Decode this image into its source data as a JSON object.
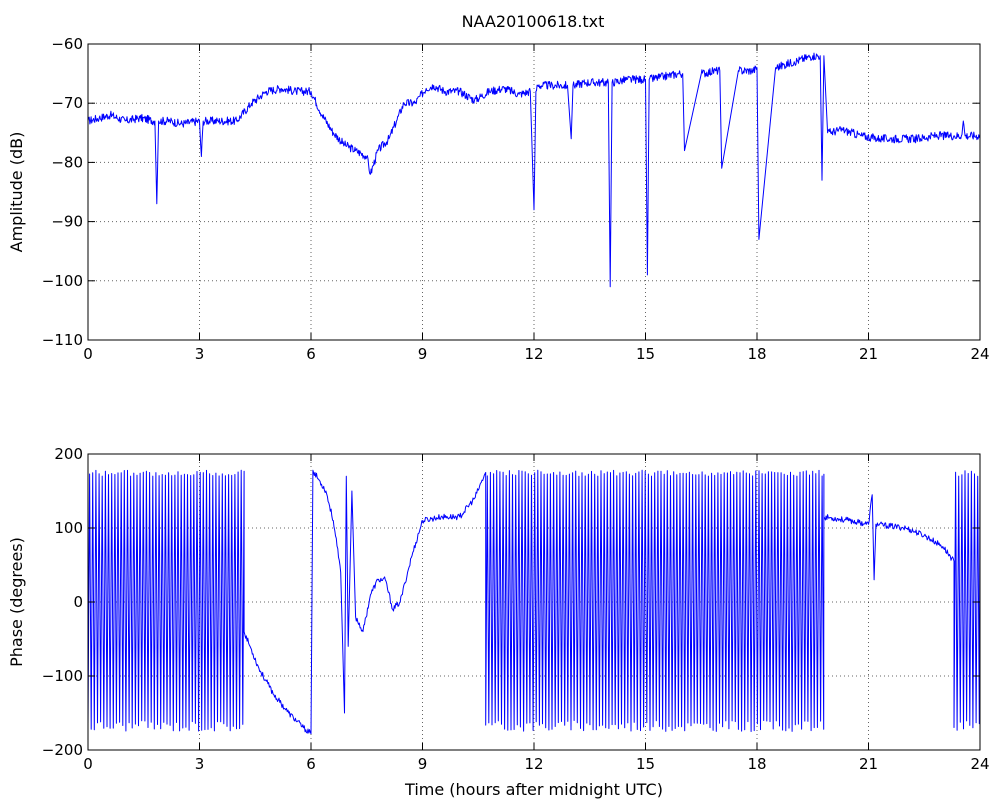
{
  "figure": {
    "title": "NAA20100618.txt",
    "xlabel": "Time (hours after midnight UTC)"
  },
  "chart_data": [
    {
      "type": "line",
      "title": "NAA20100618.txt",
      "xlabel": "",
      "ylabel": "Amplitude (dB)",
      "xlim": [
        0,
        24
      ],
      "ylim": [
        -110,
        -60
      ],
      "xticks": [
        0,
        3,
        6,
        9,
        12,
        15,
        18,
        21,
        24
      ],
      "yticks": [
        -110,
        -100,
        -90,
        -80,
        -70,
        -60
      ],
      "grid": true,
      "color": "#0000ff",
      "series": [
        {
          "x": [
            0,
            0.3,
            0.6,
            1.0,
            1.4,
            1.8,
            1.85,
            1.9,
            2.2,
            2.5,
            3.0,
            3.05,
            3.1,
            3.5,
            4.0,
            4.4,
            4.8,
            5.2,
            5.6,
            6.0,
            6.3,
            6.6,
            6.9,
            7.2,
            7.5,
            7.6,
            7.8,
            8.1,
            8.3,
            8.5,
            8.8,
            9.1,
            9.3,
            9.6,
            10.0,
            10.4,
            10.8,
            11.2,
            11.6,
            11.9,
            12.0,
            12.05,
            12.1,
            12.5,
            12.9,
            13.0,
            13.05,
            13.4,
            13.8,
            14.0,
            14.05,
            14.1,
            14.5,
            14.9,
            15.0,
            15.05,
            15.1,
            15.5,
            15.9,
            16.0,
            16.05,
            16.5,
            16.9,
            17.0,
            17.05,
            17.5,
            17.9,
            18.0,
            18.05,
            18.5,
            19.0,
            19.5,
            19.7,
            19.75,
            19.8,
            19.9,
            20.3,
            20.8,
            21.3,
            21.8,
            22.3,
            22.8,
            23.3,
            23.5,
            23.55,
            23.6,
            24.0
          ],
          "y": [
            -73,
            -72.5,
            -72,
            -73,
            -72.5,
            -73,
            -87,
            -73,
            -73,
            -73.5,
            -73,
            -79,
            -73,
            -73,
            -73,
            -70,
            -68,
            -67.5,
            -68,
            -68,
            -72,
            -75,
            -77,
            -78,
            -79,
            -82,
            -78,
            -76,
            -73,
            -70,
            -70,
            -67.5,
            -67,
            -68,
            -68,
            -69.5,
            -68,
            -67.5,
            -68.5,
            -68,
            -88,
            -68,
            -67,
            -67,
            -67,
            -76,
            -67,
            -66.5,
            -66.5,
            -66.5,
            -101,
            -66.5,
            -66,
            -66,
            -66,
            -99,
            -66,
            -65.5,
            -65,
            -65,
            -78,
            -65,
            -64.5,
            -64.5,
            -81,
            -64.5,
            -64.5,
            -64,
            -93,
            -64,
            -63,
            -62,
            -62,
            -83,
            -62,
            -75,
            -74.5,
            -75.5,
            -76,
            -76,
            -76,
            -75.5,
            -75.5,
            -75.5,
            -73,
            -75.5,
            -75.5
          ]
        }
      ]
    },
    {
      "type": "line",
      "title": "",
      "xlabel": "Time (hours after midnight UTC)",
      "ylabel": "Phase (degrees)",
      "xlim": [
        0,
        24
      ],
      "ylim": [
        -200,
        200
      ],
      "xticks": [
        0,
        3,
        6,
        9,
        12,
        15,
        18,
        21,
        24
      ],
      "yticks": [
        -200,
        -100,
        0,
        100,
        200
      ],
      "grid": true,
      "color": "#0000ff",
      "series": [
        {
          "segments": [
            {
              "kind": "wrap",
              "x": [
                0,
                4.2
              ],
              "low": -175,
              "high": 178,
              "cycle_hours": 0.085
            },
            {
              "kind": "curve",
              "x": [
                4.2,
                4.6,
                5.0,
                5.4,
                5.8,
                6.0
              ],
              "y": [
                -40,
                -90,
                -125,
                -150,
                -170,
                -178
              ]
            },
            {
              "kind": "curve",
              "x": [
                6.0,
                6.05
              ],
              "y": [
                -178,
                178
              ]
            },
            {
              "kind": "curve",
              "x": [
                6.05,
                6.4,
                6.6,
                6.8,
                6.9,
                6.95,
                7.0,
                7.1,
                7.2,
                7.4,
                7.6,
                7.8,
                8.0,
                8.2,
                8.4,
                8.7,
                9.0,
                9.5,
                10.0,
                10.4,
                10.7
              ],
              "y": [
                178,
                150,
                110,
                40,
                -150,
                170,
                -60,
                150,
                -20,
                -40,
                10,
                30,
                30,
                -10,
                0,
                60,
                110,
                115,
                115,
                140,
                175
              ]
            },
            {
              "kind": "wrap",
              "x": [
                10.7,
                19.8
              ],
              "low": -175,
              "high": 178,
              "cycle_hours": 0.085
            },
            {
              "kind": "curve",
              "x": [
                19.8,
                20.5,
                21.0,
                21.1,
                21.15,
                21.2,
                22.0,
                22.5,
                23.0,
                23.3
              ],
              "y": [
                115,
                110,
                105,
                145,
                30,
                105,
                100,
                90,
                75,
                55
              ]
            },
            {
              "kind": "wrap",
              "x": [
                23.3,
                24
              ],
              "low": -175,
              "high": 178,
              "cycle_hours": 0.085
            }
          ]
        }
      ]
    }
  ]
}
